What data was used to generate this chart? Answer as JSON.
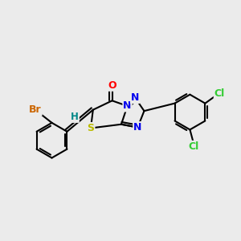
{
  "background_color": "#ebebeb",
  "bond_color": "#000000",
  "atom_colors": {
    "Br": "#cc6600",
    "Cl": "#33cc33",
    "O": "#ff0000",
    "N": "#0000ee",
    "S": "#bbbb00",
    "H": "#008888",
    "C": "#000000"
  },
  "figsize": [
    3.0,
    3.0
  ],
  "dpi": 100,
  "xlim": [
    -3.0,
    3.2
  ],
  "ylim": [
    -2.2,
    2.2
  ]
}
